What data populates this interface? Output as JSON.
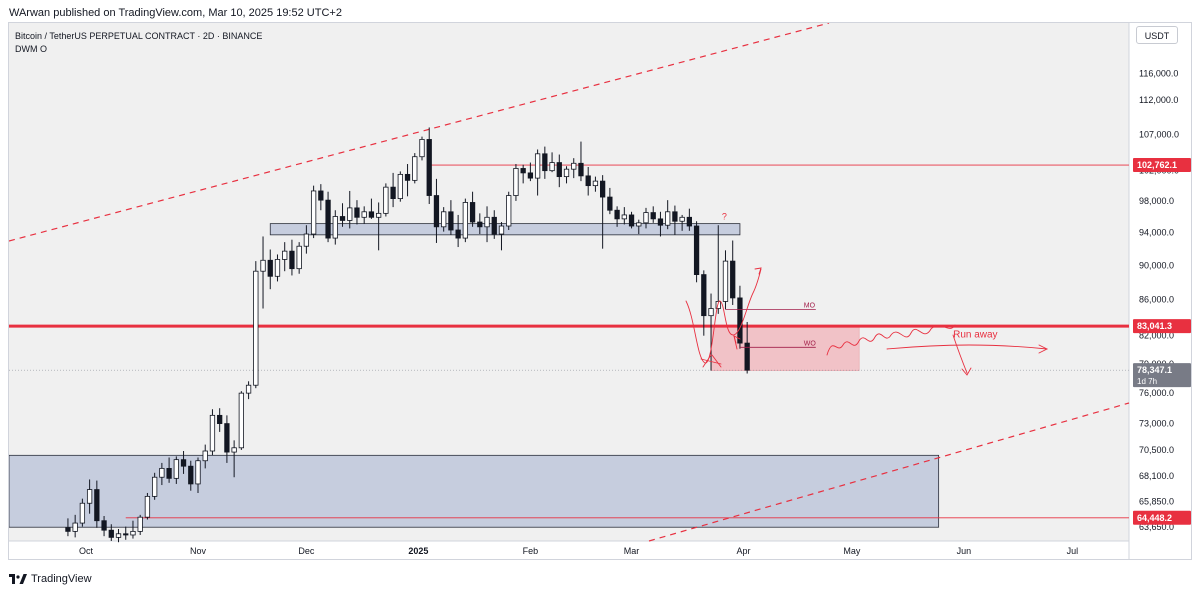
{
  "header": {
    "text": "WArwan published on TradingView.com, Mar 10, 2025 19:52 UTC+2"
  },
  "chart": {
    "symbol_line": "Bitcoin / TetherUS PERPETUAL CONTRACT · 2D · BINANCE",
    "indicator": "DWM O",
    "currency": "USDT"
  },
  "footer": {
    "logo_text": "TradingView"
  },
  "colors": {
    "red": "#e83040",
    "zone_blue": "#b8c2d8",
    "zone_red": "#f2b3ba",
    "bull": "#ffffff",
    "bear": "#131722"
  },
  "chart_data": {
    "type": "candlestick",
    "title": "Bitcoin / TetherUS PERPETUAL CONTRACT · 2D · BINANCE",
    "yscale": "log",
    "ylim": [
      62500,
      124000
    ],
    "x_months": [
      {
        "label": "Oct",
        "date": "2024-10-01"
      },
      {
        "label": "Nov",
        "date": "2024-11-01"
      },
      {
        "label": "Dec",
        "date": "2024-12-01"
      },
      {
        "label": "2025",
        "date": "2025-01-01",
        "bold": true
      },
      {
        "label": "Feb",
        "date": "2025-02-01"
      },
      {
        "label": "Mar",
        "date": "2025-03-01"
      },
      {
        "label": "Apr",
        "date": "2025-04-01"
      },
      {
        "label": "May",
        "date": "2025-05-01"
      },
      {
        "label": "Jun",
        "date": "2025-06-01"
      },
      {
        "label": "Jul",
        "date": "2025-07-01"
      }
    ],
    "y_ticks": [
      "116,000.0",
      "112,000.0",
      "107,000.0",
      "102,000.0",
      "98,000.0",
      "94,000.0",
      "90,000.0",
      "86,000.0",
      "82,000.0",
      "79,000.0",
      "76,000.0",
      "73,000.0",
      "70,500.0",
      "68,100.0",
      "65,850.0",
      "63,650.0"
    ],
    "price_labels": [
      {
        "text": "102,762.1",
        "value": 102762.1,
        "style": "red"
      },
      {
        "text": "83,041.3",
        "value": 83041.3,
        "style": "red"
      },
      {
        "text": "78,347.1",
        "value": 78347.1,
        "style": "gray",
        "sub": "1d 7h"
      },
      {
        "text": "64,448.2",
        "value": 64448.2,
        "style": "red"
      }
    ],
    "candles": [
      {
        "date": "2024-09-26",
        "o": 63600,
        "h": 64400,
        "l": 62900,
        "c": 63300
      },
      {
        "date": "2024-09-28",
        "o": 63300,
        "h": 64700,
        "l": 62800,
        "c": 64000
      },
      {
        "date": "2024-09-30",
        "o": 64000,
        "h": 66100,
        "l": 63700,
        "c": 65700
      },
      {
        "date": "2024-10-02",
        "o": 65700,
        "h": 67800,
        "l": 64800,
        "c": 66900
      },
      {
        "date": "2024-10-04",
        "o": 66900,
        "h": 67700,
        "l": 63600,
        "c": 64200
      },
      {
        "date": "2024-10-06",
        "o": 64200,
        "h": 64600,
        "l": 62900,
        "c": 63400
      },
      {
        "date": "2024-10-08",
        "o": 63400,
        "h": 63900,
        "l": 62500,
        "c": 62800
      },
      {
        "date": "2024-10-10",
        "o": 62800,
        "h": 63500,
        "l": 62400,
        "c": 63100
      },
      {
        "date": "2024-10-12",
        "o": 63100,
        "h": 63700,
        "l": 62600,
        "c": 63000
      },
      {
        "date": "2024-10-14",
        "o": 63000,
        "h": 64200,
        "l": 62700,
        "c": 63300
      },
      {
        "date": "2024-10-16",
        "o": 63300,
        "h": 64700,
        "l": 63000,
        "c": 64500
      },
      {
        "date": "2024-10-18",
        "o": 64500,
        "h": 66600,
        "l": 64300,
        "c": 66300
      },
      {
        "date": "2024-10-20",
        "o": 66300,
        "h": 68400,
        "l": 66000,
        "c": 68000
      },
      {
        "date": "2024-10-22",
        "o": 68000,
        "h": 69300,
        "l": 67300,
        "c": 68800
      },
      {
        "date": "2024-10-24",
        "o": 68800,
        "h": 69800,
        "l": 67500,
        "c": 67900
      },
      {
        "date": "2024-10-26",
        "o": 67900,
        "h": 69900,
        "l": 67400,
        "c": 69600
      },
      {
        "date": "2024-10-28",
        "o": 69600,
        "h": 70400,
        "l": 68300,
        "c": 69000
      },
      {
        "date": "2024-10-30",
        "o": 69000,
        "h": 69500,
        "l": 66800,
        "c": 67400
      },
      {
        "date": "2024-11-01",
        "o": 67400,
        "h": 69800,
        "l": 66600,
        "c": 69500
      },
      {
        "date": "2024-11-03",
        "o": 69500,
        "h": 71000,
        "l": 68800,
        "c": 70400
      },
      {
        "date": "2024-11-05",
        "o": 70400,
        "h": 74400,
        "l": 70000,
        "c": 73800
      },
      {
        "date": "2024-11-07",
        "o": 73800,
        "h": 74500,
        "l": 72200,
        "c": 73000
      },
      {
        "date": "2024-11-09",
        "o": 73000,
        "h": 73800,
        "l": 69300,
        "c": 70300
      },
      {
        "date": "2024-11-11",
        "o": 70300,
        "h": 71400,
        "l": 68000,
        "c": 70700
      },
      {
        "date": "2024-11-13",
        "o": 70700,
        "h": 76200,
        "l": 70500,
        "c": 76000
      },
      {
        "date": "2024-11-15",
        "o": 76000,
        "h": 77200,
        "l": 75400,
        "c": 76800
      },
      {
        "date": "2024-11-17",
        "o": 76800,
        "h": 90500,
        "l": 76500,
        "c": 89300
      },
      {
        "date": "2024-11-19",
        "o": 89300,
        "h": 93500,
        "l": 85000,
        "c": 90600
      },
      {
        "date": "2024-11-21",
        "o": 90600,
        "h": 91900,
        "l": 87200,
        "c": 88700
      },
      {
        "date": "2024-11-23",
        "o": 88700,
        "h": 91300,
        "l": 88100,
        "c": 90700
      },
      {
        "date": "2024-11-25",
        "o": 90700,
        "h": 92800,
        "l": 89300,
        "c": 91700
      },
      {
        "date": "2024-11-27",
        "o": 91700,
        "h": 93100,
        "l": 88800,
        "c": 89600
      },
      {
        "date": "2024-11-29",
        "o": 89600,
        "h": 92800,
        "l": 89000,
        "c": 92300
      },
      {
        "date": "2024-12-01",
        "o": 92300,
        "h": 94900,
        "l": 91400,
        "c": 93800
      },
      {
        "date": "2024-12-03",
        "o": 93800,
        "h": 100000,
        "l": 93300,
        "c": 99300
      },
      {
        "date": "2024-12-05",
        "o": 99300,
        "h": 100200,
        "l": 96800,
        "c": 98100
      },
      {
        "date": "2024-12-07",
        "o": 98100,
        "h": 99200,
        "l": 92800,
        "c": 93300
      },
      {
        "date": "2024-12-09",
        "o": 93300,
        "h": 96800,
        "l": 92500,
        "c": 96000
      },
      {
        "date": "2024-12-11",
        "o": 96000,
        "h": 97700,
        "l": 94700,
        "c": 95500
      },
      {
        "date": "2024-12-13",
        "o": 95500,
        "h": 99300,
        "l": 94500,
        "c": 97100
      },
      {
        "date": "2024-12-15",
        "o": 97100,
        "h": 98100,
        "l": 95000,
        "c": 95900
      },
      {
        "date": "2024-12-17",
        "o": 95900,
        "h": 97300,
        "l": 95100,
        "c": 96600
      },
      {
        "date": "2024-12-19",
        "o": 96600,
        "h": 98300,
        "l": 95700,
        "c": 95900
      },
      {
        "date": "2024-12-21",
        "o": 95900,
        "h": 97800,
        "l": 91800,
        "c": 96400
      },
      {
        "date": "2024-12-23",
        "o": 96400,
        "h": 100300,
        "l": 96000,
        "c": 99800
      },
      {
        "date": "2024-12-25",
        "o": 99800,
        "h": 101700,
        "l": 97200,
        "c": 98300
      },
      {
        "date": "2024-12-27",
        "o": 98300,
        "h": 101900,
        "l": 97900,
        "c": 101500
      },
      {
        "date": "2024-12-29",
        "o": 101500,
        "h": 102900,
        "l": 98600,
        "c": 100700
      },
      {
        "date": "2024-12-31",
        "o": 100700,
        "h": 104400,
        "l": 100300,
        "c": 103900
      },
      {
        "date": "2025-01-02",
        "o": 103900,
        "h": 106700,
        "l": 103400,
        "c": 106300
      },
      {
        "date": "2025-01-04",
        "o": 106300,
        "h": 108000,
        "l": 97600,
        "c": 98700
      },
      {
        "date": "2025-01-06",
        "o": 98700,
        "h": 100900,
        "l": 92700,
        "c": 94700
      },
      {
        "date": "2025-01-08",
        "o": 94700,
        "h": 97200,
        "l": 94100,
        "c": 96600
      },
      {
        "date": "2025-01-10",
        "o": 96600,
        "h": 98100,
        "l": 93700,
        "c": 94300
      },
      {
        "date": "2025-01-12",
        "o": 94300,
        "h": 96200,
        "l": 92200,
        "c": 93300
      },
      {
        "date": "2025-01-14",
        "o": 93300,
        "h": 98300,
        "l": 92800,
        "c": 97800
      },
      {
        "date": "2025-01-16",
        "o": 97800,
        "h": 99200,
        "l": 94700,
        "c": 95300
      },
      {
        "date": "2025-01-18",
        "o": 95300,
        "h": 96400,
        "l": 93800,
        "c": 94700
      },
      {
        "date": "2025-01-20",
        "o": 94700,
        "h": 97300,
        "l": 92800,
        "c": 95900
      },
      {
        "date": "2025-01-22",
        "o": 95900,
        "h": 96800,
        "l": 93200,
        "c": 93800
      },
      {
        "date": "2025-01-24",
        "o": 93800,
        "h": 95300,
        "l": 91800,
        "c": 94800
      },
      {
        "date": "2025-01-26",
        "o": 94800,
        "h": 99200,
        "l": 94300,
        "c": 98700
      },
      {
        "date": "2025-01-28",
        "o": 98700,
        "h": 102900,
        "l": 98000,
        "c": 102300
      },
      {
        "date": "2025-01-30",
        "o": 102300,
        "h": 102800,
        "l": 100300,
        "c": 101700
      },
      {
        "date": "2025-02-01",
        "o": 101700,
        "h": 103100,
        "l": 100600,
        "c": 101000
      },
      {
        "date": "2025-02-03",
        "o": 101000,
        "h": 104900,
        "l": 98700,
        "c": 104300
      },
      {
        "date": "2025-02-05",
        "o": 104300,
        "h": 105300,
        "l": 100900,
        "c": 102000
      },
      {
        "date": "2025-02-07",
        "o": 102000,
        "h": 104500,
        "l": 101800,
        "c": 103100
      },
      {
        "date": "2025-02-09",
        "o": 103100,
        "h": 104200,
        "l": 99800,
        "c": 101200
      },
      {
        "date": "2025-02-11",
        "o": 101200,
        "h": 102600,
        "l": 100300,
        "c": 102200
      },
      {
        "date": "2025-02-13",
        "o": 102200,
        "h": 103700,
        "l": 101000,
        "c": 103000
      },
      {
        "date": "2025-02-15",
        "o": 103000,
        "h": 106000,
        "l": 100600,
        "c": 101300
      },
      {
        "date": "2025-02-17",
        "o": 101300,
        "h": 102500,
        "l": 98700,
        "c": 100000
      },
      {
        "date": "2025-02-19",
        "o": 100000,
        "h": 101200,
        "l": 99200,
        "c": 100600
      },
      {
        "date": "2025-02-21",
        "o": 100600,
        "h": 101400,
        "l": 92000,
        "c": 98500
      },
      {
        "date": "2025-02-23",
        "o": 98500,
        "h": 99700,
        "l": 96300,
        "c": 96800
      },
      {
        "date": "2025-02-25",
        "o": 96800,
        "h": 97300,
        "l": 94700,
        "c": 95700
      },
      {
        "date": "2025-02-27",
        "o": 95700,
        "h": 97200,
        "l": 95000,
        "c": 96200
      },
      {
        "date": "2025-03-01",
        "o": 96200,
        "h": 96600,
        "l": 94500,
        "c": 94800
      },
      {
        "date": "2025-03-03",
        "o": 94800,
        "h": 95600,
        "l": 93800,
        "c": 95200
      },
      {
        "date": "2025-03-05",
        "o": 95200,
        "h": 97100,
        "l": 94500,
        "c": 96500
      },
      {
        "date": "2025-03-07",
        "o": 96500,
        "h": 97300,
        "l": 95200,
        "c": 95700
      },
      {
        "date": "2025-03-09",
        "o": 95700,
        "h": 96600,
        "l": 93500,
        "c": 94900
      },
      {
        "date": "2025-03-11",
        "o": 94900,
        "h": 98100,
        "l": 94400,
        "c": 96600
      },
      {
        "date": "2025-03-13",
        "o": 96600,
        "h": 97400,
        "l": 93700,
        "c": 95400
      },
      {
        "date": "2025-03-15",
        "o": 95400,
        "h": 96200,
        "l": 94200,
        "c": 95900
      },
      {
        "date": "2025-03-17",
        "o": 95900,
        "h": 97000,
        "l": 94200,
        "c": 94800
      },
      {
        "date": "2025-03-19",
        "o": 94800,
        "h": 95400,
        "l": 88000,
        "c": 88900
      },
      {
        "date": "2025-03-21",
        "o": 88900,
        "h": 89400,
        "l": 82000,
        "c": 84200
      },
      {
        "date": "2025-03-23",
        "o": 84200,
        "h": 86700,
        "l": 78300,
        "c": 85000
      },
      {
        "date": "2025-03-25",
        "o": 85000,
        "h": 94900,
        "l": 84400,
        "c": 85800
      },
      {
        "date": "2025-03-27",
        "o": 85800,
        "h": 91800,
        "l": 84900,
        "c": 90500
      },
      {
        "date": "2025-03-29",
        "o": 90500,
        "h": 93000,
        "l": 85400,
        "c": 86200
      },
      {
        "date": "2025-03-31",
        "o": 86200,
        "h": 87600,
        "l": 80600,
        "c": 81200
      },
      {
        "date": "2025-04-02",
        "o": 81200,
        "h": 83500,
        "l": 78000,
        "c": 78347.1
      }
    ],
    "x_compression_note": "",
    "zones": [
      {
        "name": "blue-zone-upper",
        "x0": "2024-11-21",
        "x1": "2025-03-31",
        "y0": 93700,
        "y1": 95100,
        "color": "#b8c2d8"
      },
      {
        "name": "blue-zone-lower",
        "x0": "2024-09-01",
        "x1": "2025-05-25",
        "y0": 63650,
        "y1": 70000,
        "color": "#b8c2d8"
      },
      {
        "name": "red-zone",
        "x0": "2025-03-23",
        "x1": "2025-05-03",
        "y0": 78300,
        "y1": 83100,
        "color": "#f2b3ba"
      }
    ],
    "hlines": [
      {
        "name": "line-102762",
        "value": 102762.1,
        "x0": "2025-01-04",
        "color": "#e83040",
        "width": 0.8
      },
      {
        "name": "line-83041",
        "value": 83041.3,
        "x0": "2024-09-01",
        "color": "#e83040",
        "width": 3
      },
      {
        "name": "line-64448",
        "value": 64448.2,
        "x0": "2024-10-12",
        "color": "#e83040",
        "width": 0.8
      },
      {
        "name": "line-78347",
        "value": 78347.1,
        "x0": "2024-09-01",
        "color": "#9598a1",
        "width": 0.6,
        "dotted": true
      }
    ],
    "level_lines": [
      {
        "name": "mo-line",
        "label": "MO",
        "value": 84900,
        "x0": "2025-03-27",
        "x1": "2025-04-21"
      },
      {
        "name": "wo-line",
        "label": "WO",
        "value": 80750,
        "x0": "2025-03-31",
        "x1": "2025-04-21"
      }
    ],
    "annotations": [
      {
        "name": "question-mark",
        "text": "?",
        "x": "2025-03-26",
        "y": 95600
      },
      {
        "name": "run-away-label",
        "text": "Run away",
        "x": "2025-05-29",
        "y": 81800
      }
    ]
  }
}
